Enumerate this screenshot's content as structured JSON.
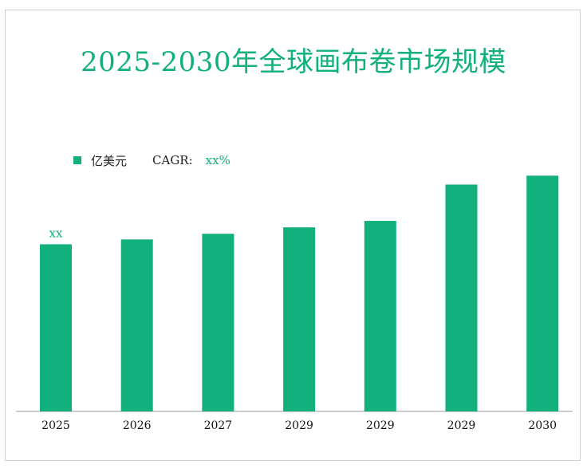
{
  "chart_data": {
    "type": "bar",
    "title": "2025-2030年全球画布卷市场规模",
    "legend": {
      "series_name": "亿美元",
      "cagr_label": "CAGR:",
      "cagr_value": "xx%"
    },
    "categories": [
      "2025",
      "2026",
      "2027",
      "2029",
      "2029",
      "2029",
      "2030"
    ],
    "values": [
      207,
      213,
      220,
      228,
      236,
      281,
      292
    ],
    "data_labels": [
      "xx",
      "",
      "",
      "",
      "",
      "",
      ""
    ],
    "ylim": [
      0,
      320
    ],
    "grid": false,
    "legend_placement": "top-left",
    "colors": {
      "bar": "#12b07c",
      "accent_text": "#12b07c"
    }
  }
}
